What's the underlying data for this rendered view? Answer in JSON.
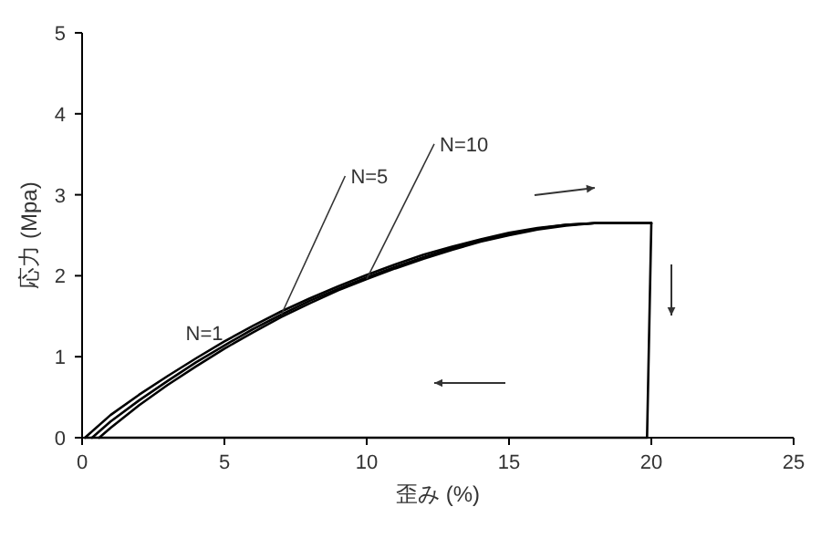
{
  "chart_data": {
    "type": "line",
    "xlabel": "歪み (%)",
    "ylabel": "応力 (Mpa)",
    "xlim": [
      0,
      25
    ],
    "ylim": [
      0,
      5
    ],
    "xticks": [
      0,
      5,
      10,
      15,
      20,
      25
    ],
    "yticks": [
      0,
      1,
      2,
      3,
      4,
      5
    ],
    "grid": false,
    "legend": false,
    "marker": "none",
    "line_style": "solid",
    "series": [
      {
        "name": "N=1",
        "color": "#000000",
        "x": [
          0.1,
          1,
          2,
          3,
          4,
          5,
          6,
          7,
          8,
          9,
          10,
          11,
          12,
          13,
          14,
          15,
          16,
          17,
          18,
          19,
          20
        ],
        "values": [
          0,
          0.28,
          0.53,
          0.76,
          0.98,
          1.19,
          1.38,
          1.56,
          1.72,
          1.87,
          2.01,
          2.14,
          2.26,
          2.36,
          2.45,
          2.53,
          2.59,
          2.63,
          2.65,
          2.65,
          2.65
        ]
      },
      {
        "name": "N=5",
        "color": "#000000",
        "x": [
          0.35,
          1,
          2,
          3,
          4,
          5,
          6,
          7,
          8,
          9,
          10,
          11,
          12,
          13,
          14,
          15,
          16,
          17,
          18,
          19,
          20
        ],
        "values": [
          0,
          0.2,
          0.46,
          0.7,
          0.93,
          1.14,
          1.34,
          1.52,
          1.69,
          1.84,
          1.98,
          2.11,
          2.23,
          2.34,
          2.43,
          2.51,
          2.58,
          2.63,
          2.65,
          2.65,
          2.65
        ]
      },
      {
        "name": "N=10",
        "color": "#000000",
        "x": [
          0.6,
          1,
          2,
          3,
          4,
          5,
          6,
          7,
          8,
          9,
          10,
          11,
          12,
          13,
          14,
          15,
          16,
          17,
          18,
          19,
          20
        ],
        "values": [
          0,
          0.12,
          0.4,
          0.65,
          0.88,
          1.1,
          1.3,
          1.49,
          1.66,
          1.82,
          1.96,
          2.09,
          2.21,
          2.32,
          2.42,
          2.5,
          2.57,
          2.62,
          2.65,
          2.65,
          2.65
        ]
      },
      {
        "color": "#000000",
        "x": [
          20,
          19.85,
          0.1
        ],
        "values": [
          2.65,
          0,
          0
        ]
      }
    ]
  }
}
